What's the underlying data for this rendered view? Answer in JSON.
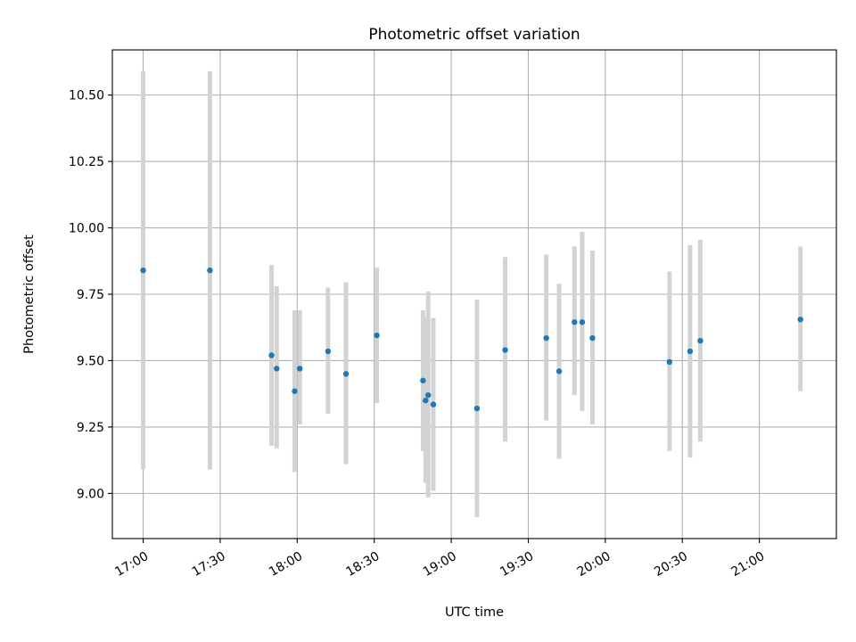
{
  "chart_data": {
    "type": "scatter",
    "title": "Photometric offset variation",
    "xlabel": "UTC time",
    "ylabel": "Photometric offset",
    "x_unit": "UTC time (HH:MM)",
    "xlim": [
      "16:48",
      "21:30"
    ],
    "ylim": [
      8.83,
      10.67
    ],
    "x_ticks": [
      "17:00",
      "17:30",
      "18:00",
      "18:30",
      "19:00",
      "19:30",
      "20:00",
      "20:30",
      "21:00"
    ],
    "y_ticks": [
      "9.00",
      "9.25",
      "9.50",
      "9.75",
      "10.00",
      "10.25",
      "10.50"
    ],
    "grid": true,
    "marker_color": "#1f77b4",
    "errorbar_color": "#d3d3d3",
    "points": [
      {
        "x": "17:00",
        "y": 9.84,
        "ylow": 9.09,
        "yhigh": 10.59
      },
      {
        "x": "17:26",
        "y": 9.84,
        "ylow": 9.09,
        "yhigh": 10.59
      },
      {
        "x": "17:50",
        "y": 9.52,
        "ylow": 9.18,
        "yhigh": 9.86
      },
      {
        "x": "17:52",
        "y": 9.47,
        "ylow": 9.17,
        "yhigh": 9.78
      },
      {
        "x": "17:59",
        "y": 9.385,
        "ylow": 9.08,
        "yhigh": 9.69
      },
      {
        "x": "18:01",
        "y": 9.47,
        "ylow": 9.26,
        "yhigh": 9.69
      },
      {
        "x": "18:12",
        "y": 9.535,
        "ylow": 9.3,
        "yhigh": 9.775
      },
      {
        "x": "18:19",
        "y": 9.45,
        "ylow": 9.11,
        "yhigh": 9.795
      },
      {
        "x": "18:31",
        "y": 9.595,
        "ylow": 9.34,
        "yhigh": 9.85
      },
      {
        "x": "18:49",
        "y": 9.425,
        "ylow": 9.16,
        "yhigh": 9.69
      },
      {
        "x": "18:50",
        "y": 9.35,
        "ylow": 9.04,
        "yhigh": 9.66
      },
      {
        "x": "18:51",
        "y": 9.37,
        "ylow": 8.985,
        "yhigh": 9.76
      },
      {
        "x": "18:53",
        "y": 9.335,
        "ylow": 9.01,
        "yhigh": 9.66
      },
      {
        "x": "19:10",
        "y": 9.32,
        "ylow": 8.91,
        "yhigh": 9.73
      },
      {
        "x": "19:21",
        "y": 9.54,
        "ylow": 9.195,
        "yhigh": 9.89
      },
      {
        "x": "19:37",
        "y": 9.585,
        "ylow": 9.275,
        "yhigh": 9.9
      },
      {
        "x": "19:42",
        "y": 9.46,
        "ylow": 9.13,
        "yhigh": 9.79
      },
      {
        "x": "19:48",
        "y": 9.645,
        "ylow": 9.37,
        "yhigh": 9.93
      },
      {
        "x": "19:51",
        "y": 9.645,
        "ylow": 9.31,
        "yhigh": 9.985
      },
      {
        "x": "19:55",
        "y": 9.585,
        "ylow": 9.26,
        "yhigh": 9.915
      },
      {
        "x": "20:25",
        "y": 9.495,
        "ylow": 9.16,
        "yhigh": 9.835
      },
      {
        "x": "20:33",
        "y": 9.535,
        "ylow": 9.135,
        "yhigh": 9.935
      },
      {
        "x": "20:37",
        "y": 9.575,
        "ylow": 9.195,
        "yhigh": 9.955
      },
      {
        "x": "21:16",
        "y": 9.655,
        "ylow": 9.385,
        "yhigh": 9.93
      }
    ]
  }
}
